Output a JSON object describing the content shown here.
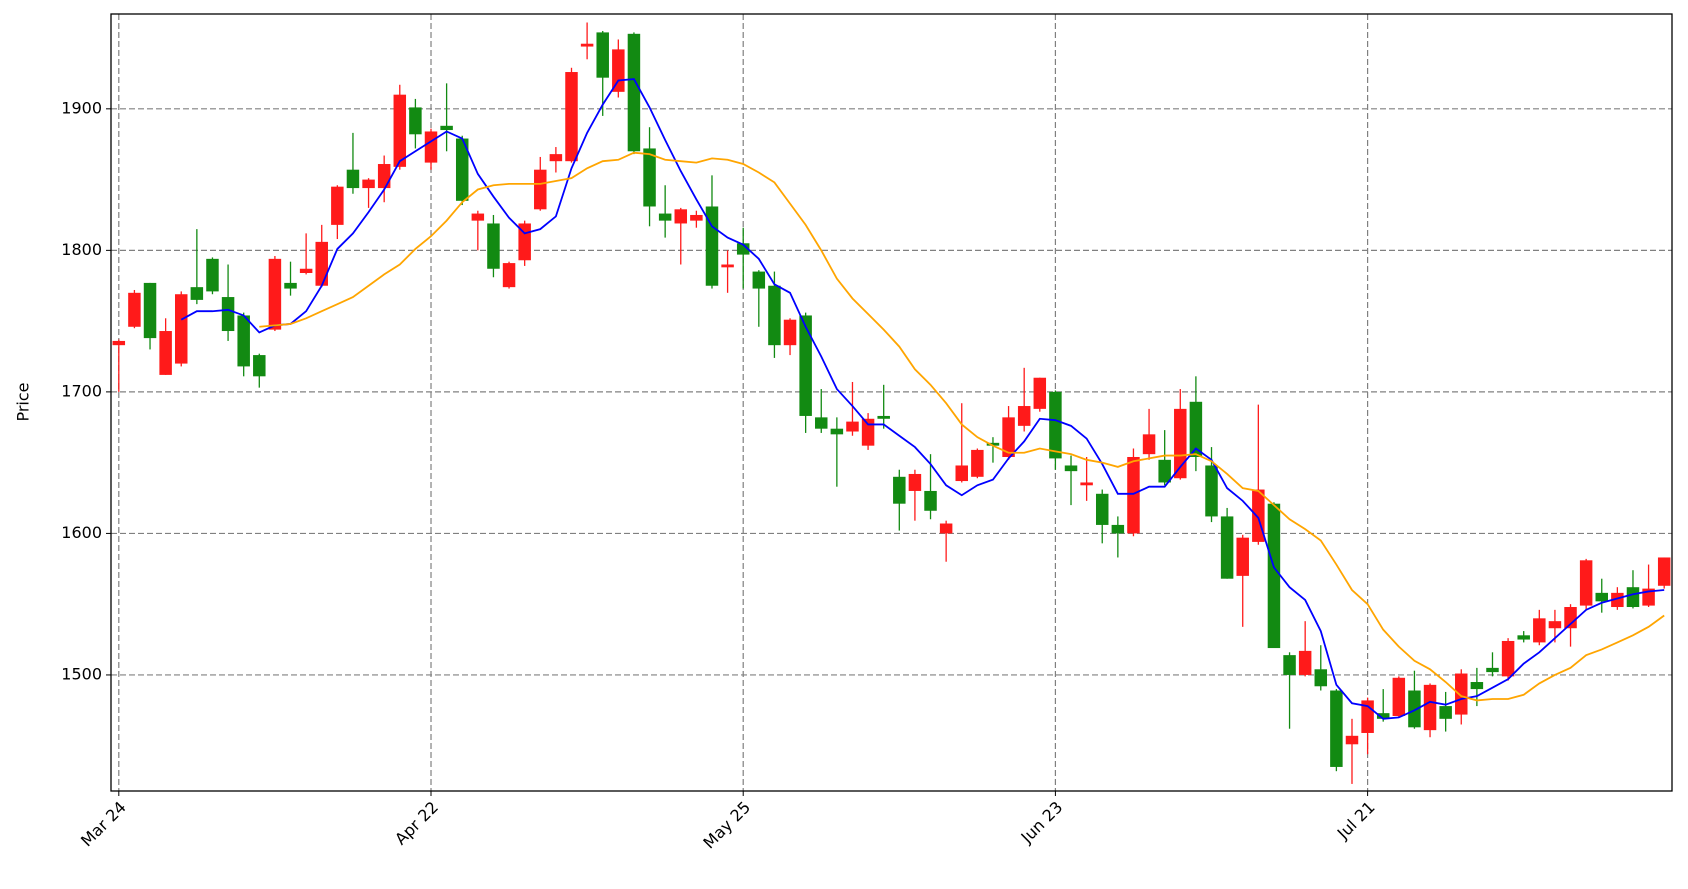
{
  "chart_data": {
    "type": "candlestick",
    "ylabel": "Price",
    "categories": [
      "Mar 24",
      null,
      null,
      null,
      null,
      null,
      null,
      null,
      null,
      null,
      null,
      null,
      null,
      null,
      null,
      null,
      null,
      null,
      null,
      null,
      "Apr 22",
      null,
      null,
      null,
      null,
      null,
      null,
      null,
      null,
      null,
      null,
      null,
      null,
      null,
      null,
      null,
      null,
      null,
      null,
      null,
      "May 25",
      null,
      null,
      null,
      null,
      null,
      null,
      null,
      null,
      null,
      null,
      null,
      null,
      null,
      null,
      null,
      null,
      null,
      null,
      null,
      "Jun 23",
      null,
      null,
      null,
      null,
      null,
      null,
      null,
      null,
      null,
      null,
      null,
      null,
      null,
      null,
      null,
      null,
      null,
      null,
      null,
      "Jul 21",
      null,
      null,
      null,
      null,
      null,
      null,
      null,
      null,
      null,
      null,
      null,
      null,
      null,
      null,
      null,
      null,
      null,
      null,
      null
    ],
    "open": [
      1733,
      1746,
      1777,
      1712,
      1720,
      1774,
      1794,
      1767,
      1754,
      1726,
      1744,
      1777,
      1784,
      1775,
      1818,
      1857,
      1844,
      1844,
      1859,
      1901,
      1862,
      1888,
      1879,
      1821,
      1819,
      1774,
      1793,
      1829,
      1863,
      1863,
      1944,
      1954,
      1912,
      1953,
      1872,
      1826,
      1819,
      1821,
      1831,
      1788,
      1805,
      1785,
      1775,
      1733,
      1754,
      1682,
      1674,
      1672,
      1662,
      1683,
      1640,
      1630,
      1630,
      1600,
      1637,
      1640,
      1664,
      1654,
      1676,
      1688,
      1700,
      1648,
      1634,
      1628,
      1606,
      1600,
      1656,
      1652,
      1639,
      1693,
      1648,
      1612,
      1570,
      1594,
      1621,
      1514,
      1500,
      1504,
      1489,
      1451,
      1459,
      1473,
      1471,
      1489,
      1461,
      1478,
      1472,
      1495,
      1505,
      1499,
      1528,
      1523,
      1533,
      1533,
      1549,
      1558,
      1548,
      1562,
      1549,
      1563
    ],
    "high": [
      1737,
      1772,
      1777,
      1752,
      1771,
      1815,
      1795,
      1790,
      1756,
      1727,
      1796,
      1792,
      1812,
      1818,
      1846,
      1883,
      1851,
      1867,
      1917,
      1907,
      1886,
      1918,
      1881,
      1828,
      1825,
      1792,
      1821,
      1866,
      1873,
      1929,
      1961,
      1955,
      1949,
      1954,
      1887,
      1846,
      1830,
      1828,
      1853,
      1800,
      1816,
      1786,
      1785,
      1752,
      1756,
      1702,
      1682,
      1707,
      1685,
      1705,
      1645,
      1645,
      1656,
      1609,
      1692,
      1660,
      1668,
      1690,
      1717,
      1710,
      1701,
      1655,
      1654,
      1631,
      1612,
      1660,
      1688,
      1673,
      1702,
      1711,
      1661,
      1618,
      1599,
      1691,
      1622,
      1516,
      1538,
      1521,
      1490,
      1469,
      1484,
      1490,
      1499,
      1503,
      1494,
      1488,
      1504,
      1505,
      1516,
      1526,
      1531,
      1546,
      1546,
      1550,
      1582,
      1568,
      1562,
      1574,
      1578,
      1583
    ],
    "low": [
      1700,
      1745,
      1730,
      1712,
      1718,
      1762,
      1769,
      1736,
      1711,
      1703,
      1743,
      1768,
      1783,
      1774,
      1808,
      1840,
      1830,
      1834,
      1857,
      1872,
      1857,
      1870,
      1832,
      1800,
      1781,
      1773,
      1789,
      1828,
      1855,
      1862,
      1935,
      1895,
      1908,
      1868,
      1817,
      1809,
      1790,
      1816,
      1773,
      1770,
      1773,
      1746,
      1724,
      1726,
      1671,
      1671,
      1633,
      1669,
      1659,
      1674,
      1602,
      1609,
      1610,
      1580,
      1636,
      1639,
      1650,
      1652,
      1672,
      1686,
      1645,
      1620,
      1623,
      1593,
      1583,
      1598,
      1652,
      1634,
      1638,
      1644,
      1608,
      1568,
      1534,
      1592,
      1519,
      1462,
      1499,
      1489,
      1432,
      1423,
      1444,
      1467,
      1470,
      1462,
      1456,
      1460,
      1465,
      1478,
      1499,
      1496,
      1523,
      1521,
      1523,
      1520,
      1546,
      1544,
      1546,
      1547,
      1548,
      1561
    ],
    "close": [
      1736,
      1770,
      1738,
      1743,
      1769,
      1765,
      1771,
      1743,
      1718,
      1711,
      1794,
      1773,
      1787,
      1806,
      1845,
      1844,
      1850,
      1861,
      1910,
      1882,
      1884,
      1885,
      1835,
      1826,
      1787,
      1791,
      1819,
      1857,
      1868,
      1926,
      1946,
      1922,
      1942,
      1870,
      1831,
      1821,
      1829,
      1825,
      1775,
      1790,
      1797,
      1773,
      1733,
      1751,
      1683,
      1674,
      1670,
      1679,
      1681,
      1681,
      1621,
      1642,
      1616,
      1607,
      1648,
      1659,
      1662,
      1682,
      1690,
      1710,
      1653,
      1644,
      1636,
      1606,
      1600,
      1654,
      1670,
      1636,
      1688,
      1654,
      1612,
      1568,
      1597,
      1631,
      1519,
      1500,
      1517,
      1492,
      1435,
      1457,
      1482,
      1469,
      1498,
      1463,
      1493,
      1469,
      1501,
      1490,
      1502,
      1524,
      1525,
      1540,
      1538,
      1548,
      1581,
      1552,
      1558,
      1548,
      1561,
      1583
    ],
    "up_color": "#ff1a1a",
    "down_color": "#128a12",
    "series": [
      {
        "color": "#0000ff",
        "values": [
          null,
          null,
          null,
          null,
          1751,
          1757,
          1757,
          1758,
          1754,
          1742,
          1747,
          1748,
          1757,
          1775,
          1801,
          1812,
          1827,
          1843,
          1863,
          1870,
          1877,
          1884,
          1879,
          1854,
          1838,
          1823,
          1812,
          1815,
          1824,
          1858,
          1883,
          1903,
          1920,
          1921,
          1901,
          1878,
          1856,
          1836,
          1817,
          1809,
          1804,
          1794,
          1776,
          1770,
          1746,
          1725,
          1702,
          1690,
          1677,
          1677,
          1669,
          1661,
          1649,
          1634,
          1627,
          1634,
          1638,
          1653,
          1665,
          1681,
          1680,
          1676,
          1667,
          1649,
          1628,
          1628,
          1633,
          1633,
          1647,
          1660,
          1652,
          1632,
          1623,
          1611,
          1576,
          1562,
          1553,
          1531,
          1493,
          1480,
          1478,
          1469,
          1470,
          1475,
          1481,
          1479,
          1483,
          1485,
          1491,
          1497,
          1508,
          1516,
          1526,
          1536,
          1546,
          1551,
          1554,
          1557,
          1559,
          1560
        ]
      },
      {
        "color": "#ffa500",
        "values": [
          null,
          null,
          null,
          null,
          null,
          null,
          null,
          null,
          null,
          1746,
          1747,
          1748,
          1752,
          1757,
          1762,
          1767,
          1775,
          1783,
          1790,
          1801,
          1810,
          1821,
          1834,
          1843,
          1846,
          1847,
          1847,
          1847,
          1849,
          1851,
          1858,
          1863,
          1864,
          1869,
          1868,
          1864,
          1863,
          1862,
          1865,
          1864,
          1861,
          1855,
          1848,
          1833,
          1818,
          1800,
          1780,
          1766,
          1755,
          1744,
          1732,
          1716,
          1705,
          1692,
          1677,
          1668,
          1662,
          1657,
          1657,
          1660,
          1658,
          1656,
          1652,
          1650,
          1647,
          1651,
          1653,
          1655,
          1655,
          1656,
          1651,
          1642,
          1632,
          1630,
          1620,
          1610,
          1603,
          1595,
          1578,
          1560,
          1550,
          1532,
          1520,
          1510,
          1504,
          1495,
          1485,
          1482,
          1483,
          1483,
          1486,
          1494,
          1500,
          1505,
          1514,
          1518,
          1523,
          1528,
          1534,
          1542
        ]
      }
    ],
    "ylim": [
      1418,
      1967
    ],
    "yticks": [
      1500,
      1600,
      1700,
      1800,
      1900
    ],
    "grid": true
  }
}
